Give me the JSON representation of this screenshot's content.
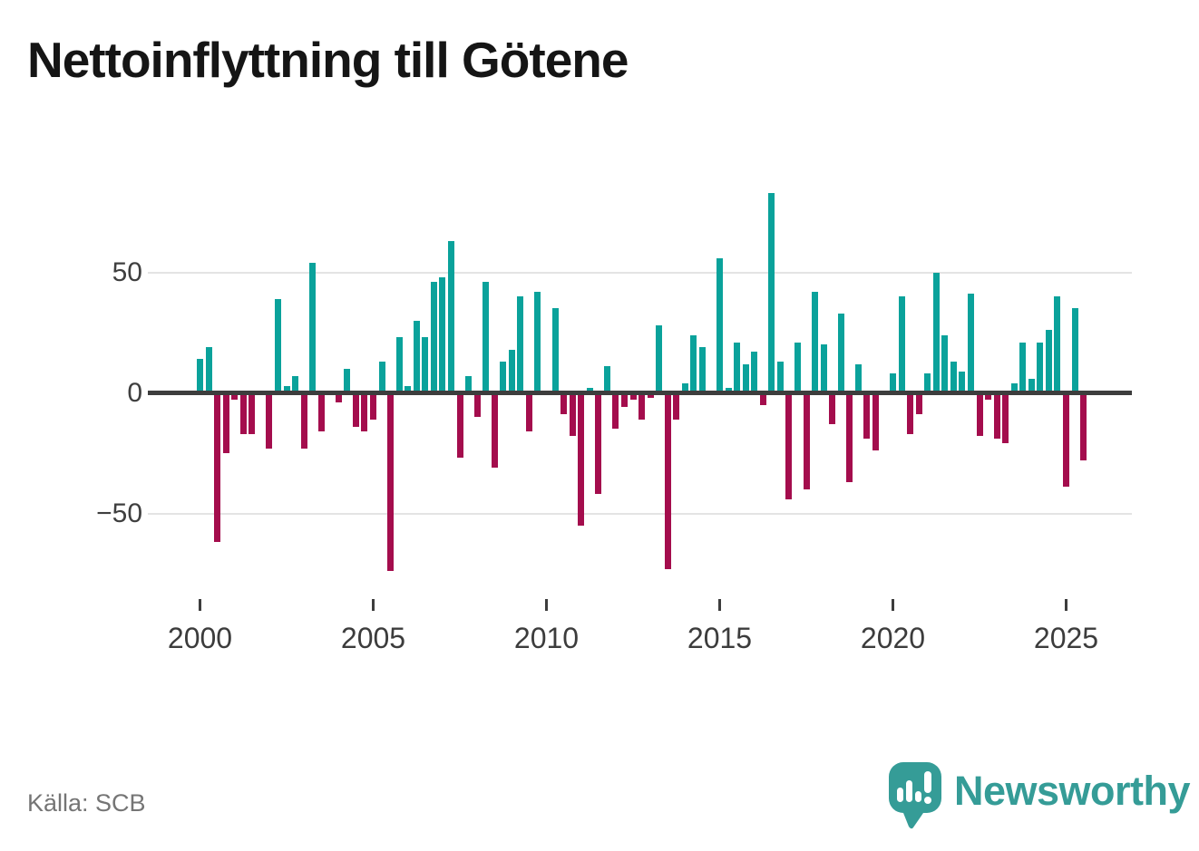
{
  "title": "Nettoinflyttning till Götene",
  "source": "Källa: SCB",
  "logo": {
    "wordmark": "Newsworthy",
    "icon": "newsworthy-speech-bubble-bar-chart-icon"
  },
  "colors": {
    "positive": "#0aa29b",
    "negative": "#a40d4d",
    "axis": "#3d3d3d",
    "gridline": "#e4e4e4",
    "brand": "#359c97",
    "title_text": "#151515",
    "tick_text": "#3c3c3c",
    "source_text": "#757575"
  },
  "chart_data": {
    "type": "bar",
    "title": "Nettoinflyttning till Götene",
    "xlabel": "",
    "ylabel": "",
    "start_period": "2000Q1",
    "frequency": "quarterly",
    "values": [
      14,
      19,
      -62,
      -25,
      -3,
      -17,
      -17,
      0,
      -23,
      39,
      3,
      7,
      -23,
      54,
      -16,
      0,
      -4,
      10,
      -14,
      -16,
      -11,
      13,
      -74,
      23,
      3,
      30,
      23,
      46,
      48,
      63,
      -27,
      7,
      -10,
      46,
      -31,
      13,
      18,
      40,
      -16,
      42,
      0,
      35,
      -9,
      -18,
      -55,
      2,
      -42,
      11,
      -15,
      -6,
      -3,
      -11,
      -2,
      28,
      -73,
      -11,
      4,
      24,
      19,
      0,
      56,
      2,
      21,
      12,
      17,
      -5,
      83,
      13,
      -44,
      21,
      -40,
      42,
      20,
      -13,
      33,
      -37,
      12,
      -19,
      -24,
      0,
      8,
      40,
      -17,
      -9,
      8,
      50,
      24,
      13,
      9,
      41,
      -18,
      -3,
      -19,
      -21,
      4,
      21,
      6,
      21,
      26,
      40,
      -39,
      35,
      -28
    ],
    "yticks": [
      {
        "value": 50,
        "label": "50"
      },
      {
        "value": 0,
        "label": "0"
      },
      {
        "value": -50,
        "label": "−50"
      }
    ],
    "xticks": [
      {
        "index": 0,
        "label": "2000"
      },
      {
        "index": 20,
        "label": "2005"
      },
      {
        "index": 40,
        "label": "2010"
      },
      {
        "index": 60,
        "label": "2015"
      },
      {
        "index": 80,
        "label": "2020"
      },
      {
        "index": 100,
        "label": "2025"
      }
    ],
    "ylim": [
      -80,
      90
    ],
    "grid": true,
    "legend": false,
    "positive_color": "#0aa29b",
    "negative_color": "#a40d4d"
  }
}
